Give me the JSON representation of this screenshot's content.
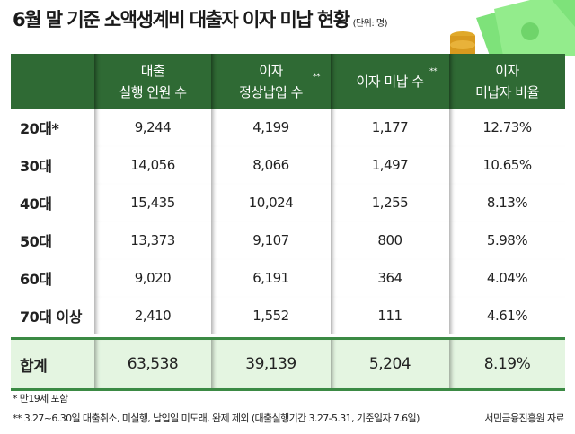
{
  "title": "6월 말 기준 소액생계비 대출자 이자 미납 현황",
  "unit": "(단위: 명)",
  "headers": [
    {
      "line1": "",
      "line2": ""
    },
    {
      "line1": "대출",
      "line2": "실행 인원 수"
    },
    {
      "line1": "이자",
      "line2": "정상납입 수",
      "mark": "**"
    },
    {
      "line1": "이자 미납 수",
      "line2": "",
      "mark": "**"
    },
    {
      "line1": "이자",
      "line2": "미납자 비율"
    }
  ],
  "rows": [
    [
      "20대*",
      "9,244",
      "4,199",
      "1,177",
      "12.73%"
    ],
    [
      "30대",
      "14,056",
      "8,066",
      "1,497",
      "10.65%"
    ],
    [
      "40대",
      "15,435",
      "10,024",
      "1,255",
      "8.13%"
    ],
    [
      "50대",
      "13,373",
      "9,107",
      "800",
      "5.98%"
    ],
    [
      "60대",
      "9,020",
      "6,191",
      "364",
      "4.04%"
    ],
    [
      "70대 이상",
      "2,410",
      "1,552",
      "111",
      "4.61%"
    ]
  ],
  "total": [
    "합계",
    "63,538",
    "39,139",
    "5,204",
    "8.19%"
  ],
  "notes": [
    "* 만19세 포함",
    "** 3.27~6.30일 대출취소, 미실행, 납입일 미도래, 완제 제외 (대출실행기간 3.27-5.31, 기준일자 7.6일)"
  ],
  "source": "서민금융진흥원 자료",
  "colors": {
    "header": "#2f6a34",
    "total_bg": "#e4f5e1",
    "total_border": "#3b8a44"
  }
}
